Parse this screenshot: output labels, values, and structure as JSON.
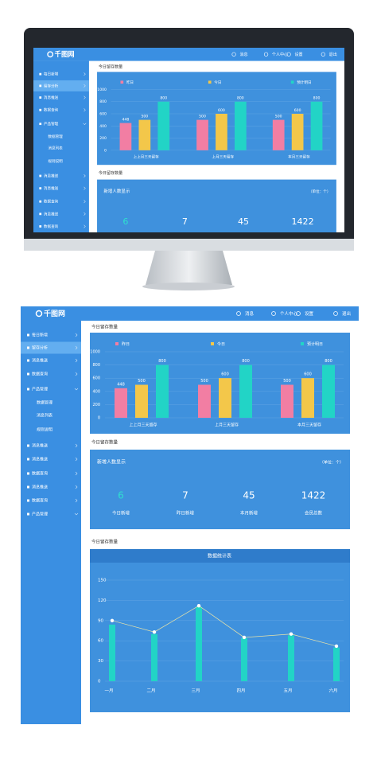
{
  "header": {
    "logo": "千图网",
    "nav": [
      "消息",
      "个人中心",
      "设置",
      "退出"
    ]
  },
  "sidebar": {
    "items": [
      "每日新增",
      "留存分析",
      "消息推送",
      "数据查询",
      "产品管理",
      "消息推送",
      "消息推送",
      "数据查询",
      "消息推送",
      "数据查询",
      "产品管理"
    ],
    "active": 1,
    "submenu": [
      "数据管理",
      "消息列表",
      "规则说明"
    ]
  },
  "sections": [
    "今日留存数量",
    "今日留存数量",
    "今日留存数量"
  ],
  "stats": {
    "title": "新增人数显示",
    "unit": "（单位：个）",
    "items": [
      {
        "value": 6,
        "label": "今日新增"
      },
      {
        "value": 7,
        "label": "昨日新增"
      },
      {
        "value": 45,
        "label": "本月新增"
      },
      {
        "value": 1422,
        "label": "会员总数"
      }
    ]
  },
  "chart_data": [
    {
      "type": "bar",
      "categories": [
        "上上月三天留存",
        "上月三天留存",
        "本月三天留存"
      ],
      "series": [
        {
          "name": "昨日",
          "color": "#f27ea3",
          "values": [
            448,
            500,
            500
          ]
        },
        {
          "name": "今日",
          "color": "#f3c74a",
          "values": [
            500,
            600,
            600
          ]
        },
        {
          "name": "预计明日",
          "color": "#22d4c6",
          "values": [
            800,
            800,
            800
          ]
        }
      ],
      "ylim": [
        0,
        1000
      ],
      "yticks": [
        0,
        200,
        400,
        600,
        800,
        1000
      ],
      "grid": true
    },
    {
      "type": "combo",
      "title": "数据统计表",
      "categories": [
        "一月",
        "二月",
        "三月",
        "四月",
        "五月",
        "六月"
      ],
      "series": [
        {
          "type": "bar",
          "color": "#22d4c6",
          "values": [
            84,
            70,
            110,
            64,
            68,
            50
          ]
        },
        {
          "type": "line",
          "color": "#e8e3a8",
          "values": [
            90,
            73,
            112,
            65,
            70,
            52
          ]
        }
      ],
      "ylim": [
        0,
        150
      ],
      "yticks": [
        0,
        30,
        60,
        90,
        120,
        150
      ],
      "grid": true
    }
  ]
}
